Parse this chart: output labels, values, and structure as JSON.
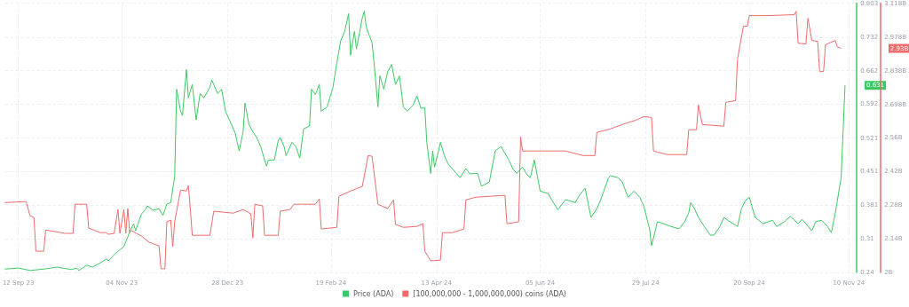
{
  "chart_data": {
    "type": "line",
    "xlim": [
      "2023-09-05",
      "2024-11-14"
    ],
    "xticks": [
      {
        "value": "2023-09-12",
        "label": "12 Sep 23"
      },
      {
        "value": "2023-11-04",
        "label": "04 Nov 23"
      },
      {
        "value": "2023-12-28",
        "label": "28 Dec 23"
      },
      {
        "value": "2024-02-19",
        "label": "19 Feb 24"
      },
      {
        "value": "2024-04-13",
        "label": "13 Apr 24"
      },
      {
        "value": "2024-06-05",
        "label": "05 Jun 24"
      },
      {
        "value": "2024-07-29",
        "label": "29 Jul 24"
      },
      {
        "value": "2024-09-20",
        "label": "20 Sep 24"
      },
      {
        "value": "2024-11-10",
        "label": "10 Nov 24"
      }
    ],
    "ylim": [
      0.24,
      0.803
    ],
    "yticks": [
      0.24,
      0.31,
      0.381,
      0.451,
      0.521,
      0.592,
      0.662,
      0.732,
      0.803
    ],
    "y2lim": [
      2,
      3.118
    ],
    "y2ticks": [
      {
        "value": 2,
        "label": "2B"
      },
      {
        "value": 2.14,
        "label": "2.14B"
      },
      {
        "value": 2.28,
        "label": "2.28B"
      },
      {
        "value": 2.42,
        "label": "2.42B"
      },
      {
        "value": 2.56,
        "label": "2.56B"
      },
      {
        "value": 2.698,
        "label": "2.698B"
      },
      {
        "value": 2.838,
        "label": "2.838B"
      },
      {
        "value": 2.978,
        "label": "2.978B"
      },
      {
        "value": 3.118,
        "label": "3.118B"
      }
    ],
    "grid": true,
    "legend": "bottom",
    "marker": "none",
    "line_style": "solid",
    "annotations": [
      "0.631",
      "2.93B"
    ],
    "series": [
      {
        "name": "Price (ADA)",
        "color": "#3cc864",
        "x": [
          "2023-09-05",
          "2023-09-12",
          "2023-09-18",
          "2023-09-25",
          "2023-10-02",
          "2023-10-09",
          "2023-10-12",
          "2023-10-13",
          "2023-10-17",
          "2023-10-20",
          "2023-10-24",
          "2023-10-27",
          "2023-10-28",
          "2023-10-31",
          "2023-11-02",
          "2023-11-05",
          "2023-11-07",
          "2023-11-08",
          "2023-11-10",
          "2023-11-11",
          "2023-11-14",
          "2023-11-16",
          "2023-11-17",
          "2023-11-20",
          "2023-11-23",
          "2023-11-25",
          "2023-11-27",
          "2023-11-29",
          "2023-12-01",
          "2023-12-02",
          "2023-12-04",
          "2023-12-05",
          "2023-12-07",
          "2023-12-08",
          "2023-12-10",
          "2023-12-12",
          "2023-12-14",
          "2023-12-16",
          "2023-12-19",
          "2023-12-20",
          "2023-12-23",
          "2023-12-25",
          "2023-12-27",
          "2023-12-29",
          "2024-01-01",
          "2024-01-02",
          "2024-01-03",
          "2024-01-05",
          "2024-01-06",
          "2024-01-08",
          "2024-01-10",
          "2024-01-12",
          "2024-01-14",
          "2024-01-17",
          "2024-01-18",
          "2024-01-21",
          "2024-01-23",
          "2024-01-24",
          "2024-01-26",
          "2024-01-27",
          "2024-01-30",
          "2024-02-01",
          "2024-02-03",
          "2024-02-05",
          "2024-02-08",
          "2024-02-09",
          "2024-02-11",
          "2024-02-13",
          "2024-02-14",
          "2024-02-17",
          "2024-02-20",
          "2024-02-22",
          "2024-02-24",
          "2024-02-26",
          "2024-02-28",
          "2024-02-29",
          "2024-03-02",
          "2024-03-03",
          "2024-03-06",
          "2024-03-07",
          "2024-03-08",
          "2024-03-11",
          "2024-03-12",
          "2024-03-14",
          "2024-03-15",
          "2024-03-17",
          "2024-03-19",
          "2024-03-21",
          "2024-03-23",
          "2024-03-25",
          "2024-03-27",
          "2024-03-29",
          "2024-04-01",
          "2024-04-03",
          "2024-04-05",
          "2024-04-07",
          "2024-04-08",
          "2024-04-10",
          "2024-04-11",
          "2024-04-12",
          "2024-04-14",
          "2024-04-15",
          "2024-04-17",
          "2024-04-19",
          "2024-04-21",
          "2024-04-25",
          "2024-04-28",
          "2024-04-30",
          "2024-05-04",
          "2024-05-06",
          "2024-05-10",
          "2024-05-13",
          "2024-05-16",
          "2024-05-20",
          "2024-05-22",
          "2024-05-24",
          "2024-05-27",
          "2024-05-29",
          "2024-05-31",
          "2024-06-02",
          "2024-06-05",
          "2024-06-09",
          "2024-06-14",
          "2024-06-18",
          "2024-06-23",
          "2024-06-25",
          "2024-06-28",
          "2024-07-01",
          "2024-07-04",
          "2024-07-06",
          "2024-07-10",
          "2024-07-11",
          "2024-07-15",
          "2024-07-17",
          "2024-07-20",
          "2024-07-23",
          "2024-07-26",
          "2024-07-28",
          "2024-07-31",
          "2024-08-01",
          "2024-08-04",
          "2024-08-07",
          "2024-08-11",
          "2024-08-15",
          "2024-08-18",
          "2024-08-20",
          "2024-08-21",
          "2024-08-23",
          "2024-08-25",
          "2024-08-28",
          "2024-08-31",
          "2024-09-02",
          "2024-09-05",
          "2024-09-07",
          "2024-09-10",
          "2024-09-14",
          "2024-09-16",
          "2024-09-18",
          "2024-09-20",
          "2024-09-23",
          "2024-09-27",
          "2024-10-02",
          "2024-10-04",
          "2024-10-08",
          "2024-10-11",
          "2024-10-15",
          "2024-10-17",
          "2024-10-19",
          "2024-10-22",
          "2024-10-24",
          "2024-10-27",
          "2024-10-30",
          "2024-11-01",
          "2024-11-03",
          "2024-11-06",
          "2024-11-08"
        ],
        "values": [
          0.247,
          0.249,
          0.244,
          0.247,
          0.251,
          0.246,
          0.249,
          0.244,
          0.255,
          0.251,
          0.26,
          0.268,
          0.264,
          0.277,
          0.284,
          0.294,
          0.314,
          0.325,
          0.342,
          0.327,
          0.362,
          0.371,
          0.379,
          0.37,
          0.373,
          0.359,
          0.383,
          0.386,
          0.44,
          0.623,
          0.577,
          0.568,
          0.664,
          0.605,
          0.633,
          0.559,
          0.614,
          0.605,
          0.627,
          0.642,
          0.614,
          0.623,
          0.577,
          0.559,
          0.531,
          0.512,
          0.494,
          0.534,
          0.594,
          0.549,
          0.534,
          0.522,
          0.503,
          0.462,
          0.475,
          0.475,
          0.516,
          0.522,
          0.503,
          0.484,
          0.512,
          0.503,
          0.479,
          0.54,
          0.546,
          0.623,
          0.612,
          0.633,
          0.577,
          0.586,
          0.627,
          0.679,
          0.725,
          0.744,
          0.781,
          0.694,
          0.744,
          0.707,
          0.772,
          0.786,
          0.753,
          0.72,
          0.679,
          0.586,
          0.651,
          0.623,
          0.66,
          0.675,
          0.633,
          0.651,
          0.586,
          0.577,
          0.59,
          0.609,
          0.583,
          0.584,
          0.512,
          0.447,
          0.494,
          0.46,
          0.494,
          0.512,
          0.484,
          0.466,
          0.457,
          0.438,
          0.457,
          0.446,
          0.447,
          0.42,
          0.429,
          0.494,
          0.503,
          0.475,
          0.457,
          0.447,
          0.46,
          0.446,
          0.438,
          0.475,
          0.41,
          0.405,
          0.371,
          0.392,
          0.386,
          0.401,
          0.416,
          0.355,
          0.373,
          0.392,
          0.438,
          0.442,
          0.438,
          0.429,
          0.397,
          0.41,
          0.397,
          0.379,
          0.331,
          0.296,
          0.346,
          0.342,
          0.336,
          0.331,
          0.346,
          0.364,
          0.386,
          0.373,
          0.355,
          0.336,
          0.318,
          0.318,
          0.336,
          0.355,
          0.346,
          0.336,
          0.373,
          0.39,
          0.397,
          0.355,
          0.342,
          0.349,
          0.336,
          0.346,
          0.357,
          0.342,
          0.351,
          0.342,
          0.327,
          0.346,
          0.349,
          0.336,
          0.323,
          0.364,
          0.438,
          0.631
        ]
      },
      {
        "name": "[100,000,000 - 1,000,000,000) coins (ADA)",
        "color": "#ee6b6b",
        "axis": "y2",
        "x": [
          "2023-09-05",
          "2023-09-16",
          "2023-09-18",
          "2023-09-20",
          "2023-09-21",
          "2023-09-25",
          "2023-09-26",
          "2023-10-06",
          "2023-10-10",
          "2023-10-11",
          "2023-10-17",
          "2023-10-18",
          "2023-10-24",
          "2023-10-27",
          "2023-10-28",
          "2023-10-31",
          "2023-11-02",
          "2023-11-03",
          "2023-11-05",
          "2023-11-06",
          "2023-11-07",
          "2023-11-08",
          "2023-11-09",
          "2023-11-14",
          "2023-11-18",
          "2023-11-23",
          "2023-11-24",
          "2023-11-26",
          "2023-11-27",
          "2023-11-29",
          "2023-11-30",
          "2023-12-01",
          "2023-12-04",
          "2023-12-07",
          "2023-12-08",
          "2023-12-09",
          "2023-12-10",
          "2023-12-19",
          "2023-12-21",
          "2023-12-31",
          "2024-01-05",
          "2024-01-09",
          "2024-01-10",
          "2024-01-11",
          "2024-01-15",
          "2024-01-16",
          "2024-01-23",
          "2024-01-24",
          "2024-01-29",
          "2024-01-31",
          "2024-02-11",
          "2024-02-13",
          "2024-02-14",
          "2024-02-22",
          "2024-02-23",
          "2024-02-29",
          "2024-03-06",
          "2024-03-09",
          "2024-03-11",
          "2024-03-14",
          "2024-03-19",
          "2024-03-22",
          "2024-03-23",
          "2024-03-27",
          "2024-04-03",
          "2024-04-06",
          "2024-04-07",
          "2024-04-10",
          "2024-04-15",
          "2024-04-16",
          "2024-04-21",
          "2024-04-27",
          "2024-04-28",
          "2024-05-03",
          "2024-05-18",
          "2024-05-19",
          "2024-05-25",
          "2024-05-26",
          "2024-05-27",
          "2024-06-18",
          "2024-06-27",
          "2024-07-03",
          "2024-07-04",
          "2024-07-11",
          "2024-07-17",
          "2024-07-24",
          "2024-07-28",
          "2024-08-01",
          "2024-08-02",
          "2024-08-09",
          "2024-08-19",
          "2024-08-20",
          "2024-08-24",
          "2024-08-25",
          "2024-08-27",
          "2024-09-07",
          "2024-09-08",
          "2024-09-13",
          "2024-09-14",
          "2024-09-17",
          "2024-09-19",
          "2024-09-20",
          "2024-09-29",
          "2024-10-13",
          "2024-10-14",
          "2024-10-15",
          "2024-10-19",
          "2024-10-20",
          "2024-10-22",
          "2024-10-25",
          "2024-10-26",
          "2024-10-28",
          "2024-10-29",
          "2024-11-03",
          "2024-11-04",
          "2024-11-06"
        ],
        "values": [
          2.29,
          2.294,
          2.235,
          2.228,
          2.088,
          2.088,
          2.176,
          2.162,
          2.162,
          2.283,
          2.283,
          2.184,
          2.165,
          2.165,
          2.158,
          2.162,
          2.261,
          2.162,
          2.261,
          2.162,
          2.265,
          2.165,
          2.173,
          2.151,
          2.125,
          2.11,
          2.015,
          2.015,
          2.21,
          2.217,
          2.107,
          2.21,
          2.342,
          2.338,
          2.36,
          2.265,
          2.154,
          2.154,
          2.254,
          2.246,
          2.261,
          2.243,
          2.143,
          2.283,
          2.276,
          2.154,
          2.154,
          2.254,
          2.261,
          2.283,
          2.283,
          2.305,
          2.18,
          2.187,
          2.316,
          2.338,
          2.357,
          2.485,
          2.482,
          2.283,
          2.265,
          2.301,
          2.199,
          2.187,
          2.191,
          2.202,
          2.088,
          2.048,
          2.051,
          2.165,
          2.165,
          2.18,
          2.301,
          2.312,
          2.32,
          2.202,
          2.21,
          2.562,
          2.504,
          2.504,
          2.485,
          2.485,
          2.581,
          2.596,
          2.614,
          2.632,
          2.647,
          2.643,
          2.504,
          2.489,
          2.489,
          2.592,
          2.592,
          2.695,
          2.614,
          2.607,
          2.706,
          2.713,
          2.886,
          3.022,
          3.022,
          3.066,
          3.066,
          3.07,
          3.084,
          2.952,
          2.948,
          3.055,
          2.963,
          2.959,
          2.834,
          2.834,
          2.945,
          2.963,
          2.937,
          2.93
        ]
      }
    ]
  }
}
